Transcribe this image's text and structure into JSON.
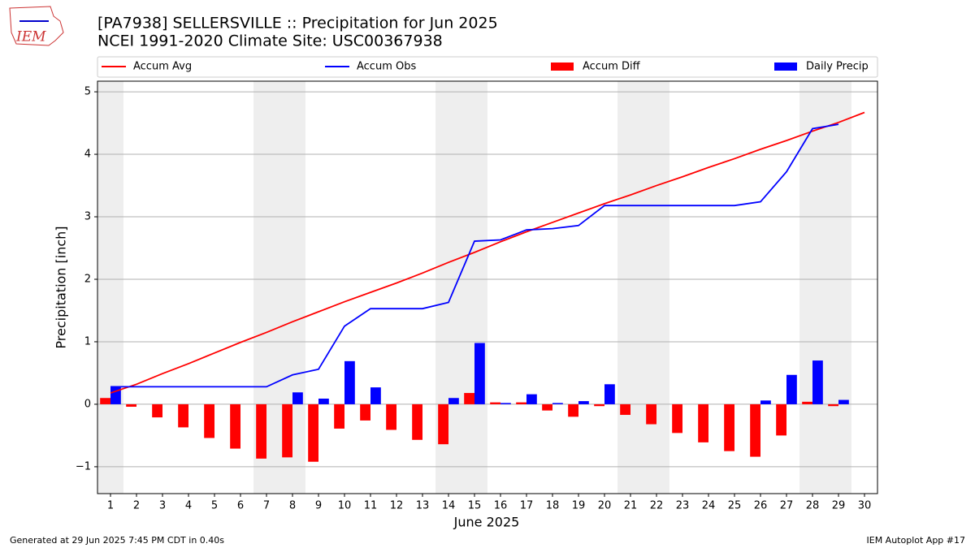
{
  "chart_data": {
    "type": "bar",
    "logo_text": "IEM",
    "title": "[PA7938] SELLERSVILLE :: Precipitation for Jun 2025",
    "subtitle": "NCEI 1991-2020 Climate Site: USC00367938",
    "x_label": "June 2025",
    "y_label": "Precipitation [inch]",
    "footer_left": "Generated at 29 Jun 2025 7:45 PM CDT in 0.40s",
    "footer_right": "IEM Autoplot App #17",
    "x": [
      1,
      2,
      3,
      4,
      5,
      6,
      7,
      8,
      9,
      10,
      11,
      12,
      13,
      14,
      15,
      16,
      17,
      18,
      19,
      20,
      21,
      22,
      23,
      24,
      25,
      26,
      27,
      28,
      29,
      30
    ],
    "xlim": [
      0.5,
      30.5
    ],
    "xticks": [
      1,
      2,
      3,
      4,
      5,
      6,
      7,
      8,
      9,
      10,
      11,
      12,
      13,
      14,
      15,
      16,
      17,
      18,
      19,
      20,
      21,
      22,
      23,
      24,
      25,
      26,
      27,
      28,
      29,
      30
    ],
    "ylim": [
      -1.43,
      5.17
    ],
    "yticks": [
      {
        "value": -1,
        "label": "−1"
      },
      0,
      1,
      2,
      3,
      4,
      5
    ],
    "grid": true,
    "legend": "top",
    "series": [
      {
        "name": "Accum Avg",
        "type": "line",
        "color": "#ff0000",
        "values": [
          0.18,
          0.32,
          0.49,
          0.65,
          0.82,
          0.99,
          1.15,
          1.32,
          1.48,
          1.64,
          1.79,
          1.94,
          2.1,
          2.27,
          2.43,
          2.6,
          2.76,
          2.91,
          3.06,
          3.21,
          3.35,
          3.5,
          3.64,
          3.79,
          3.93,
          4.08,
          4.22,
          4.37,
          4.51,
          4.67
        ]
      },
      {
        "name": "Accum Obs",
        "type": "line",
        "color": "#0000ff",
        "values": [
          0.28,
          0.28,
          0.28,
          0.28,
          0.28,
          0.28,
          0.28,
          0.47,
          0.56,
          1.25,
          1.53,
          1.53,
          1.53,
          1.63,
          2.61,
          2.63,
          2.79,
          2.81,
          2.86,
          3.18,
          3.18,
          3.18,
          3.18,
          3.18,
          3.18,
          3.24,
          3.72,
          4.41,
          4.48,
          null
        ]
      },
      {
        "name": "Accum Diff",
        "type": "bar",
        "color": "#ff0000",
        "values": [
          0.1,
          -0.04,
          -0.21,
          -0.37,
          -0.54,
          -0.71,
          -0.87,
          -0.85,
          -0.92,
          -0.39,
          -0.26,
          -0.41,
          -0.57,
          -0.64,
          0.18,
          0.03,
          0.03,
          -0.1,
          -0.2,
          -0.03,
          -0.17,
          -0.32,
          -0.46,
          -0.61,
          -0.75,
          -0.84,
          -0.5,
          0.04,
          -0.03,
          null
        ]
      },
      {
        "name": "Daily Precip",
        "type": "bar",
        "color": "#0000ff",
        "values": [
          0.28,
          0,
          0,
          0,
          0,
          0,
          0,
          0.19,
          0.09,
          0.69,
          0.27,
          0,
          0,
          0.1,
          0.98,
          0.02,
          0.16,
          0.02,
          0.05,
          0.32,
          0,
          0,
          0,
          0,
          0,
          0.06,
          0.47,
          0.7,
          0.07,
          null
        ]
      }
    ]
  }
}
